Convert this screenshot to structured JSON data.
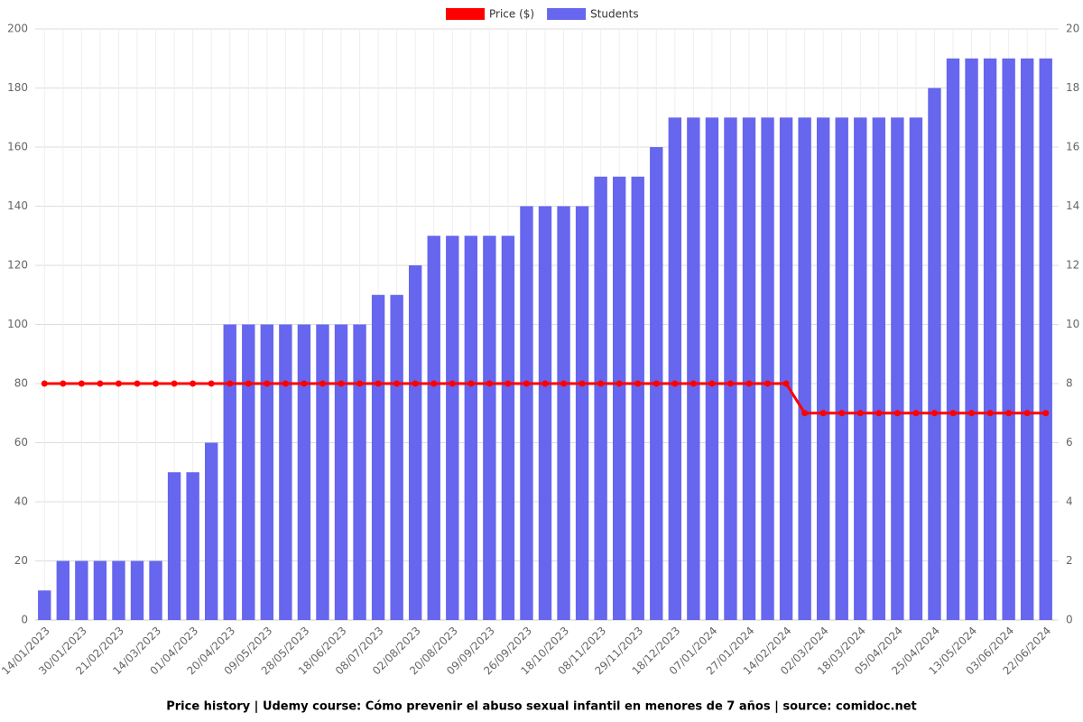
{
  "chart_data": {
    "type": "combo",
    "title": "Price history | Udemy course: Cómo prevenir el abuso sexual infantil en menores de 7 años | source: comidoc.net",
    "categories": [
      "14/01/2023",
      null,
      "30/01/2023",
      null,
      "21/02/2023",
      null,
      "14/03/2023",
      null,
      "01/04/2023",
      null,
      "20/04/2023",
      null,
      "09/05/2023",
      null,
      "28/05/2023",
      null,
      "18/06/2023",
      null,
      "08/07/2023",
      null,
      "02/08/2023",
      null,
      "20/08/2023",
      null,
      "09/09/2023",
      null,
      "26/09/2023",
      null,
      "18/10/2023",
      null,
      "08/11/2023",
      null,
      "29/11/2023",
      null,
      "18/12/2023",
      null,
      "07/01/2024",
      null,
      "27/01/2024",
      null,
      "14/02/2024",
      null,
      "02/03/2024",
      null,
      "18/03/2024",
      null,
      "05/04/2024",
      null,
      "25/04/2024",
      null,
      "13/05/2024",
      null,
      "03/06/2024",
      null,
      "22/06/2024"
    ],
    "series": [
      {
        "name": "Price ($)",
        "type": "line",
        "color": "#ff0000",
        "values": [
          80,
          80,
          80,
          80,
          80,
          80,
          80,
          80,
          80,
          80,
          80,
          80,
          80,
          80,
          80,
          80,
          80,
          80,
          80,
          80,
          80,
          80,
          80,
          80,
          80,
          80,
          80,
          80,
          80,
          80,
          80,
          80,
          80,
          80,
          80,
          80,
          80,
          80,
          80,
          80,
          80,
          70,
          70,
          70,
          70,
          70,
          70,
          70,
          70,
          70,
          70,
          70,
          70,
          70,
          70
        ]
      },
      {
        "name": "Students",
        "type": "bar",
        "color": "#6666ee",
        "axis": "y2",
        "values": [
          1,
          2,
          2,
          2,
          2,
          2,
          2,
          5,
          5,
          6,
          10,
          10,
          10,
          10,
          10,
          10,
          10,
          10,
          11,
          11,
          12,
          13,
          13,
          13,
          13,
          13,
          14,
          14,
          14,
          14,
          15,
          15,
          15,
          16,
          17,
          17,
          17,
          17,
          17,
          17,
          17,
          17,
          17,
          17,
          17,
          17,
          17,
          17,
          18,
          19,
          19,
          19,
          19,
          19,
          19
        ]
      }
    ],
    "ylim": [
      0,
      200
    ],
    "yticks": [
      0,
      20,
      40,
      60,
      80,
      100,
      120,
      140,
      160,
      180,
      200
    ],
    "y2lim": [
      0,
      20
    ],
    "y2ticks": [
      0,
      2,
      4,
      6,
      8,
      10,
      12,
      14,
      16,
      18,
      20
    ],
    "grid": true,
    "legend": "top"
  }
}
